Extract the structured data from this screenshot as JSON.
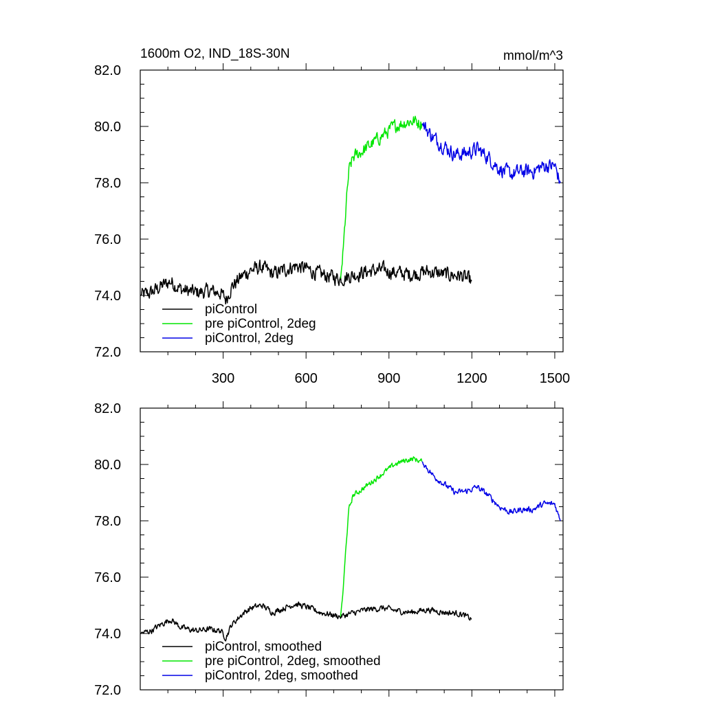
{
  "chart_data": [
    {
      "type": "line",
      "title": "1600m O2, IND_18S-30N",
      "units": "mmol/m^3",
      "xlabel": "",
      "ylabel": "",
      "xlim": [
        0,
        1530
      ],
      "ylim": [
        72.0,
        82.0
      ],
      "xticks": [
        300,
        600,
        900,
        1200,
        1500
      ],
      "xtick_labels": [
        "300",
        "600",
        "900",
        "1200",
        "1500"
      ],
      "yticks": [
        72.0,
        74.0,
        76.0,
        78.0,
        80.0,
        82.0
      ],
      "ytick_labels": [
        "72.0",
        "74.0",
        "76.0",
        "78.0",
        "80.0",
        "82.0"
      ],
      "legend_position": "bottom-left",
      "series": [
        {
          "name": "piControl",
          "color": "#000000",
          "noise": 0.22,
          "points": [
            [
              1,
              74.0
            ],
            [
              40,
              74.1
            ],
            [
              80,
              74.35
            ],
            [
              110,
              74.5
            ],
            [
              150,
              74.2
            ],
            [
              200,
              74.1
            ],
            [
              250,
              74.15
            ],
            [
              290,
              74.1
            ],
            [
              310,
              73.85
            ],
            [
              330,
              74.3
            ],
            [
              370,
              74.7
            ],
            [
              400,
              74.9
            ],
            [
              440,
              75.0
            ],
            [
              480,
              74.75
            ],
            [
              520,
              74.9
            ],
            [
              560,
              75.05
            ],
            [
              600,
              74.95
            ],
            [
              650,
              74.75
            ],
            [
              700,
              74.65
            ],
            [
              725,
              74.6
            ],
            [
              760,
              74.7
            ],
            [
              820,
              74.85
            ],
            [
              880,
              74.9
            ],
            [
              930,
              74.8
            ],
            [
              980,
              74.75
            ],
            [
              1040,
              74.85
            ],
            [
              1100,
              74.75
            ],
            [
              1160,
              74.7
            ],
            [
              1200,
              74.5
            ]
          ]
        },
        {
          "name": "pre piControl, 2deg",
          "color": "#00e600",
          "noise": 0.2,
          "points": [
            [
              725,
              74.6
            ],
            [
              735,
              75.6
            ],
            [
              745,
              77.2
            ],
            [
              755,
              78.4
            ],
            [
              770,
              78.9
            ],
            [
              800,
              79.1
            ],
            [
              840,
              79.4
            ],
            [
              880,
              79.7
            ],
            [
              920,
              80.0
            ],
            [
              960,
              80.15
            ],
            [
              990,
              80.2
            ],
            [
              1020,
              80.1
            ]
          ]
        },
        {
          "name": "piControl, 2deg",
          "color": "#0000e6",
          "noise": 0.22,
          "points": [
            [
              1020,
              80.1
            ],
            [
              1060,
              79.6
            ],
            [
              1100,
              79.3
            ],
            [
              1140,
              79.0
            ],
            [
              1180,
              79.05
            ],
            [
              1220,
              79.2
            ],
            [
              1260,
              78.9
            ],
            [
              1300,
              78.5
            ],
            [
              1340,
              78.3
            ],
            [
              1380,
              78.4
            ],
            [
              1420,
              78.4
            ],
            [
              1460,
              78.6
            ],
            [
              1500,
              78.6
            ],
            [
              1520,
              78.0
            ]
          ]
        }
      ]
    },
    {
      "type": "line",
      "title": "",
      "xlabel": "",
      "ylabel": "",
      "xlim": [
        0,
        1530
      ],
      "ylim": [
        72.0,
        82.0
      ],
      "xticks": [
        300,
        600,
        900,
        1200,
        1500
      ],
      "yticks": [
        72.0,
        74.0,
        76.0,
        78.0,
        80.0,
        82.0
      ],
      "ytick_labels": [
        "72.0",
        "74.0",
        "76.0",
        "78.0",
        "80.0",
        "82.0"
      ],
      "legend_position": "bottom-left",
      "series": [
        {
          "name": "piControl, smoothed",
          "color": "#000000",
          "noise": 0.09,
          "points": [
            [
              1,
              74.0
            ],
            [
              40,
              74.1
            ],
            [
              80,
              74.35
            ],
            [
              110,
              74.5
            ],
            [
              150,
              74.2
            ],
            [
              200,
              74.1
            ],
            [
              250,
              74.15
            ],
            [
              290,
              74.1
            ],
            [
              310,
              73.85
            ],
            [
              330,
              74.3
            ],
            [
              370,
              74.7
            ],
            [
              400,
              74.9
            ],
            [
              440,
              75.0
            ],
            [
              480,
              74.75
            ],
            [
              520,
              74.9
            ],
            [
              560,
              75.05
            ],
            [
              600,
              74.95
            ],
            [
              650,
              74.75
            ],
            [
              700,
              74.65
            ],
            [
              725,
              74.6
            ],
            [
              760,
              74.7
            ],
            [
              820,
              74.85
            ],
            [
              880,
              74.9
            ],
            [
              930,
              74.8
            ],
            [
              980,
              74.75
            ],
            [
              1040,
              74.85
            ],
            [
              1100,
              74.75
            ],
            [
              1160,
              74.7
            ],
            [
              1200,
              74.5
            ]
          ]
        },
        {
          "name": "pre piControl, 2deg, smoothed",
          "color": "#00e600",
          "noise": 0.08,
          "points": [
            [
              725,
              74.6
            ],
            [
              735,
              75.6
            ],
            [
              745,
              77.2
            ],
            [
              755,
              78.4
            ],
            [
              770,
              78.9
            ],
            [
              800,
              79.1
            ],
            [
              840,
              79.4
            ],
            [
              880,
              79.7
            ],
            [
              920,
              80.0
            ],
            [
              960,
              80.15
            ],
            [
              990,
              80.2
            ],
            [
              1020,
              80.1
            ]
          ]
        },
        {
          "name": "piControl, 2deg, smoothed",
          "color": "#0000e6",
          "noise": 0.09,
          "points": [
            [
              1020,
              80.1
            ],
            [
              1060,
              79.6
            ],
            [
              1100,
              79.3
            ],
            [
              1140,
              79.0
            ],
            [
              1180,
              79.05
            ],
            [
              1220,
              79.2
            ],
            [
              1260,
              78.9
            ],
            [
              1300,
              78.5
            ],
            [
              1340,
              78.3
            ],
            [
              1380,
              78.4
            ],
            [
              1420,
              78.4
            ],
            [
              1460,
              78.6
            ],
            [
              1500,
              78.6
            ],
            [
              1520,
              78.0
            ]
          ]
        }
      ]
    }
  ]
}
